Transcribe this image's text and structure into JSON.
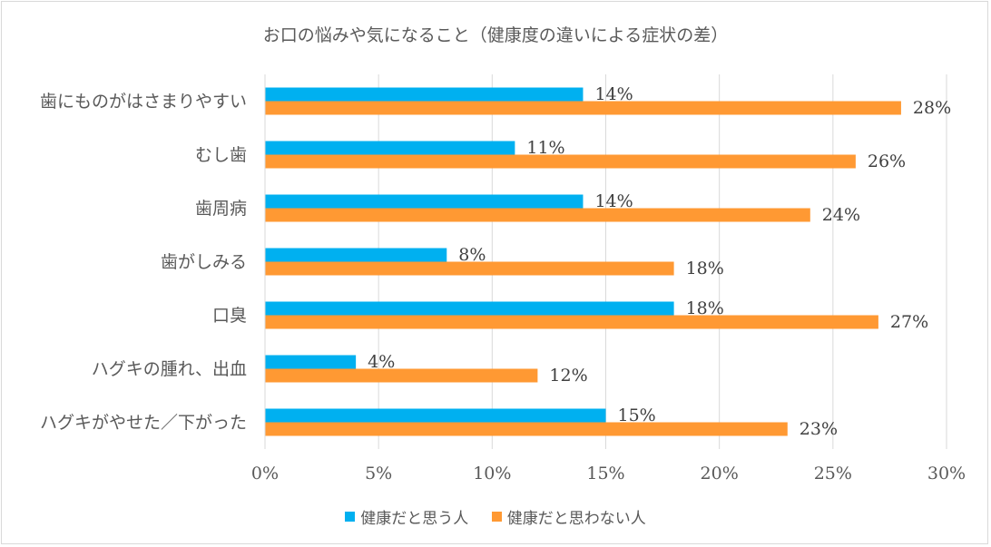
{
  "chart_data": {
    "type": "bar",
    "orientation": "horizontal",
    "title": "お口の悩みや気になること（健康度の違いによる症状の差）",
    "categories": [
      "歯にものがはさまりやすい",
      "むし歯",
      "歯周病",
      "歯がしみる",
      "口臭",
      "ハグキの腫れ、出血",
      "ハグキがやせた／下がった"
    ],
    "series": [
      {
        "name": "健康だと思う人",
        "values": [
          14,
          11,
          14,
          8,
          18,
          4,
          15
        ],
        "color": "#00b0f0"
      },
      {
        "name": "健康だと思わない人",
        "values": [
          28,
          26,
          24,
          18,
          27,
          12,
          23
        ],
        "color": "#ff9933"
      }
    ],
    "xlim": [
      0,
      30
    ],
    "xticks": [
      "0%",
      "5%",
      "10%",
      "15%",
      "20%",
      "25%",
      "30%"
    ],
    "value_suffix": "%",
    "grid": true,
    "legend_position": "bottom"
  }
}
